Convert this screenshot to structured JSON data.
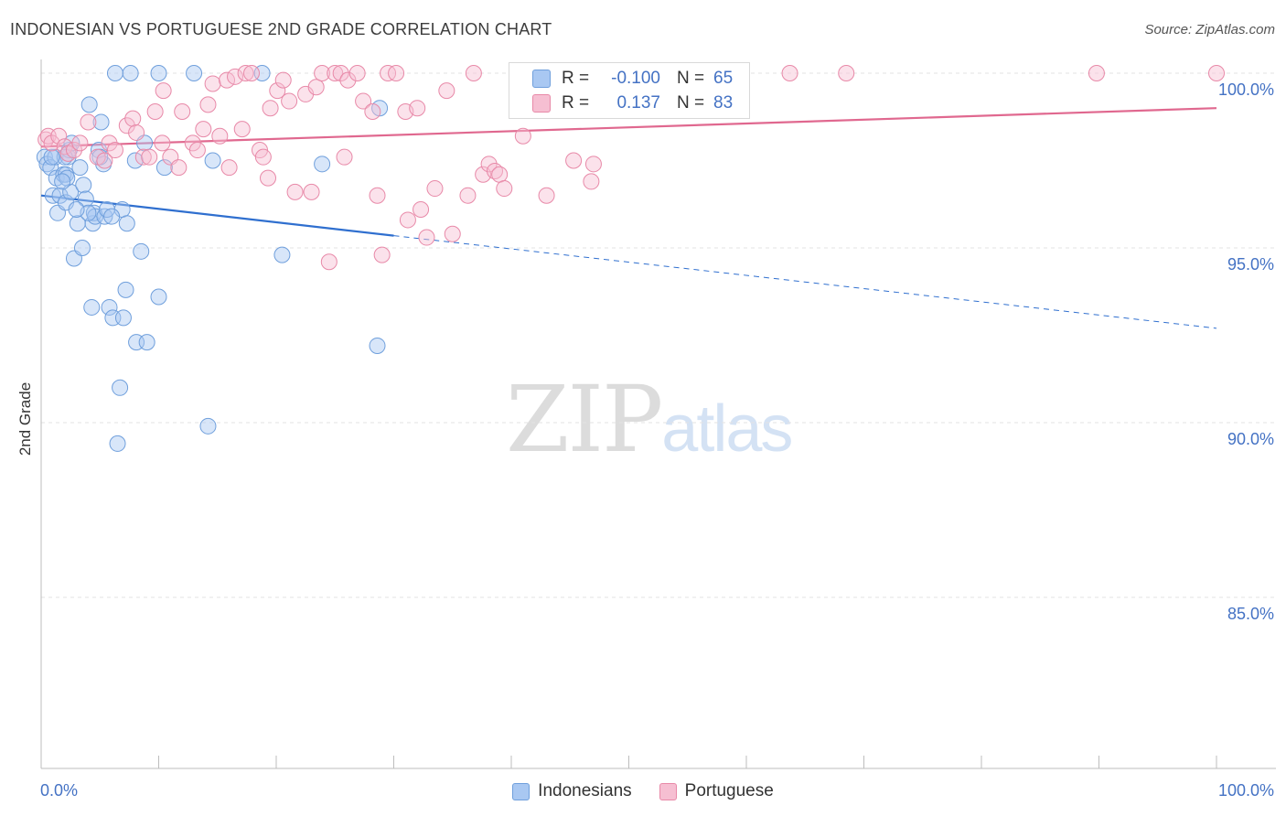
{
  "header": {
    "title": "INDONESIAN VS PORTUGUESE 2ND GRADE CORRELATION CHART",
    "source": "Source: ZipAtlas.com"
  },
  "watermark": {
    "zip": "ZIP",
    "atlas": "atlas"
  },
  "stats": {
    "rows": [
      {
        "r_label": "R =",
        "r_value": "-0.100",
        "n_label": "N =",
        "n_value": "65",
        "color": "#a9c8f2",
        "border": "#6f9fdc"
      },
      {
        "r_label": "R =",
        "r_value": "0.137",
        "n_label": "N =",
        "n_value": "83",
        "color": "#f6bfd2",
        "border": "#e889a8"
      }
    ]
  },
  "legend": {
    "items": [
      {
        "label": "Indonesians",
        "color": "#a9c8f2",
        "border": "#6f9fdc"
      },
      {
        "label": "Portuguese",
        "color": "#f6bfd2",
        "border": "#e889a8"
      }
    ]
  },
  "chart_data": {
    "type": "scatter",
    "title": "INDONESIAN VS PORTUGUESE 2ND GRADE CORRELATION CHART",
    "xlabel": "",
    "ylabel": "2nd Grade",
    "xlim": [
      0,
      100
    ],
    "ylim": [
      80.5,
      100.8
    ],
    "x_tick_labels": [
      "0.0%",
      "100.0%"
    ],
    "y_ticks": [
      85,
      90,
      95,
      100
    ],
    "y_tick_labels": [
      "85.0%",
      "90.0%",
      "95.0%",
      "100.0%"
    ],
    "grid": true,
    "legend_position": "bottom",
    "series": [
      {
        "name": "Indonesians",
        "color": "#6f9fdc",
        "fill": "rgba(169,200,242,0.45)",
        "trend": {
          "x": [
            0,
            30
          ],
          "y": [
            96.5,
            95.35
          ],
          "dashed_to": [
            100,
            92.7
          ],
          "color": "#2f6fcf"
        },
        "points": [
          [
            0.3,
            97.6
          ],
          [
            0.5,
            97.4
          ],
          [
            0.8,
            97.3
          ],
          [
            1.0,
            96.5
          ],
          [
            1.2,
            97.6
          ],
          [
            1.3,
            97.0
          ],
          [
            1.4,
            96.0
          ],
          [
            1.6,
            96.5
          ],
          [
            1.9,
            97.1
          ],
          [
            2.1,
            97.1
          ],
          [
            2.1,
            96.3
          ],
          [
            2.3,
            97.6
          ],
          [
            2.4,
            97.8
          ],
          [
            2.5,
            96.6
          ],
          [
            2.6,
            98.0
          ],
          [
            2.8,
            94.7
          ],
          [
            3.1,
            95.7
          ],
          [
            3.3,
            97.3
          ],
          [
            3.5,
            95.0
          ],
          [
            3.6,
            96.8
          ],
          [
            3.8,
            96.4
          ],
          [
            4.1,
            99.1
          ],
          [
            4.3,
            93.3
          ],
          [
            4.4,
            95.7
          ],
          [
            4.5,
            96.0
          ],
          [
            4.6,
            95.9
          ],
          [
            4.9,
            97.8
          ],
          [
            5.1,
            98.6
          ],
          [
            5.3,
            97.4
          ],
          [
            5.4,
            95.9
          ],
          [
            5.6,
            96.1
          ],
          [
            5.8,
            93.3
          ],
          [
            6.1,
            93.0
          ],
          [
            6.3,
            100.0
          ],
          [
            6.5,
            89.4
          ],
          [
            6.7,
            91.0
          ],
          [
            6.9,
            96.1
          ],
          [
            7.0,
            93.0
          ],
          [
            7.2,
            93.8
          ],
          [
            7.3,
            95.7
          ],
          [
            7.6,
            100.0
          ],
          [
            8.0,
            97.5
          ],
          [
            8.1,
            92.3
          ],
          [
            8.5,
            94.9
          ],
          [
            8.8,
            98.0
          ],
          [
            9.0,
            92.3
          ],
          [
            10.0,
            100.0
          ],
          [
            10.0,
            93.6
          ],
          [
            10.5,
            97.3
          ],
          [
            13.0,
            100.0
          ],
          [
            14.2,
            89.9
          ],
          [
            14.6,
            97.5
          ],
          [
            18.8,
            100.0
          ],
          [
            20.5,
            94.8
          ],
          [
            23.9,
            97.4
          ],
          [
            28.6,
            92.2
          ],
          [
            28.8,
            99.0
          ],
          [
            2.0,
            97.6
          ],
          [
            0.9,
            97.6
          ],
          [
            4.0,
            96.0
          ],
          [
            6.0,
            95.9
          ],
          [
            2.2,
            97.0
          ],
          [
            3.0,
            96.1
          ],
          [
            5.0,
            97.6
          ],
          [
            1.8,
            96.9
          ]
        ]
      },
      {
        "name": "Portuguese",
        "color": "#e889a8",
        "fill": "rgba(246,191,210,0.45)",
        "trend": {
          "x": [
            0,
            100
          ],
          "y": [
            97.9,
            99.0
          ],
          "color": "#e0688f"
        },
        "points": [
          [
            0.4,
            98.1
          ],
          [
            0.6,
            98.2
          ],
          [
            0.9,
            98.0
          ],
          [
            1.5,
            98.2
          ],
          [
            2.0,
            97.9
          ],
          [
            2.3,
            97.7
          ],
          [
            2.8,
            97.8
          ],
          [
            3.3,
            98.0
          ],
          [
            4.0,
            98.6
          ],
          [
            4.8,
            97.6
          ],
          [
            5.4,
            97.5
          ],
          [
            5.8,
            98.0
          ],
          [
            6.3,
            97.8
          ],
          [
            7.3,
            98.5
          ],
          [
            7.8,
            98.7
          ],
          [
            8.1,
            98.3
          ],
          [
            8.7,
            97.6
          ],
          [
            9.2,
            97.6
          ],
          [
            9.7,
            98.9
          ],
          [
            10.3,
            98.0
          ],
          [
            10.4,
            99.5
          ],
          [
            11.0,
            97.6
          ],
          [
            11.7,
            97.3
          ],
          [
            12.0,
            98.9
          ],
          [
            12.9,
            98.0
          ],
          [
            13.3,
            97.8
          ],
          [
            13.8,
            98.4
          ],
          [
            14.2,
            99.1
          ],
          [
            14.6,
            99.7
          ],
          [
            15.2,
            98.2
          ],
          [
            15.8,
            99.8
          ],
          [
            16.0,
            97.3
          ],
          [
            16.5,
            99.9
          ],
          [
            17.1,
            98.4
          ],
          [
            17.4,
            100.0
          ],
          [
            17.9,
            100.0
          ],
          [
            18.6,
            97.8
          ],
          [
            18.9,
            97.6
          ],
          [
            19.3,
            97.0
          ],
          [
            19.5,
            99.0
          ],
          [
            20.1,
            99.5
          ],
          [
            20.6,
            99.8
          ],
          [
            21.1,
            99.2
          ],
          [
            21.6,
            96.6
          ],
          [
            22.5,
            99.4
          ],
          [
            23.0,
            96.6
          ],
          [
            23.4,
            99.6
          ],
          [
            23.9,
            100.0
          ],
          [
            24.5,
            94.6
          ],
          [
            25.0,
            100.0
          ],
          [
            25.5,
            100.0
          ],
          [
            25.8,
            97.6
          ],
          [
            26.1,
            99.8
          ],
          [
            26.9,
            100.0
          ],
          [
            27.4,
            99.2
          ],
          [
            28.2,
            98.9
          ],
          [
            28.6,
            96.5
          ],
          [
            29.0,
            94.8
          ],
          [
            29.5,
            100.0
          ],
          [
            30.2,
            100.0
          ],
          [
            31.0,
            98.9
          ],
          [
            31.2,
            95.8
          ],
          [
            32.0,
            99.0
          ],
          [
            32.3,
            96.1
          ],
          [
            32.8,
            95.3
          ],
          [
            33.5,
            96.7
          ],
          [
            34.5,
            99.5
          ],
          [
            35.0,
            95.4
          ],
          [
            36.3,
            96.5
          ],
          [
            36.8,
            100.0
          ],
          [
            37.6,
            97.1
          ],
          [
            38.1,
            97.4
          ],
          [
            38.6,
            97.2
          ],
          [
            39.0,
            97.1
          ],
          [
            39.4,
            96.7
          ],
          [
            41.0,
            98.2
          ],
          [
            43.0,
            96.5
          ],
          [
            45.3,
            97.5
          ],
          [
            46.8,
            96.9
          ],
          [
            47.0,
            97.4
          ],
          [
            63.7,
            100.0
          ],
          [
            68.5,
            100.0
          ],
          [
            89.8,
            100.0
          ]
        ]
      }
    ],
    "extra_points_portuguese": [
      [
        100.0,
        100.0
      ]
    ]
  }
}
